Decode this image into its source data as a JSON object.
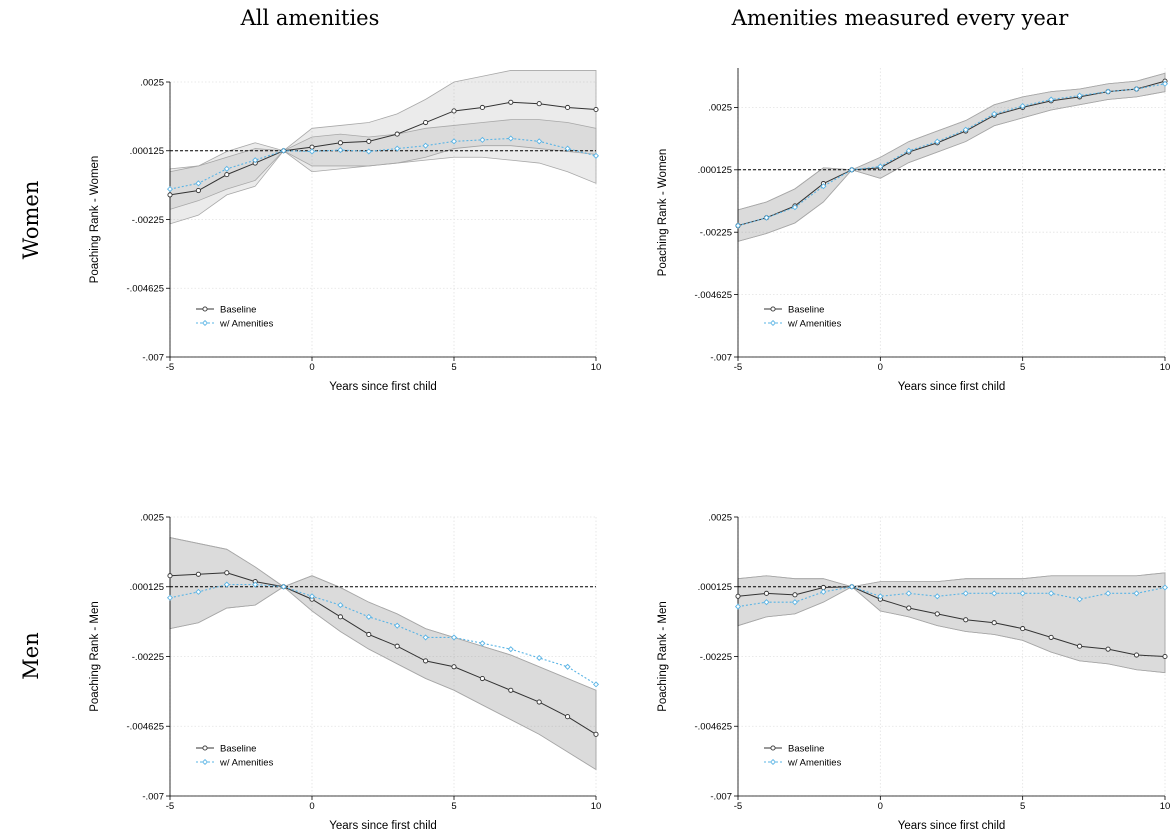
{
  "figure": {
    "column_titles": [
      "All amenities",
      "Amenities measured every year"
    ],
    "row_titles": [
      "Women",
      "Men"
    ]
  },
  "chart_data": [
    {
      "type": "line",
      "column": "All amenities",
      "row": "Women",
      "xlabel": "Years since first child",
      "ylabel": "Poaching Rank - Women",
      "xlim": [
        -5,
        10
      ],
      "ylim": [
        -0.007,
        0.0025
      ],
      "xticks": [
        "-5",
        "0",
        "5",
        "10"
      ],
      "yticks": [
        ".0025",
        ".000125",
        "-.00225",
        "-.004625",
        "-.007"
      ],
      "ytick_values": [
        0.0025,
        0.000125,
        -0.00225,
        -0.004625,
        -0.007
      ],
      "reference_line": 0.000125,
      "grid": true,
      "legend_position": "bottom-left",
      "x": [
        -5,
        -4,
        -3,
        -2,
        -1,
        0,
        1,
        2,
        3,
        4,
        5,
        6,
        7,
        8,
        9,
        10
      ],
      "series": [
        {
          "name": "Baseline",
          "color": "#333333",
          "marker": "circle",
          "values": [
            -0.0014,
            -0.00125,
            -0.0007,
            -0.0003,
            0.000125,
            0.00025,
            0.0004,
            0.00045,
            0.0007,
            0.0011,
            0.0015,
            0.00162,
            0.0018,
            0.00175,
            0.00162,
            0.00155
          ],
          "ci_low": [
            -0.0024,
            -0.0021,
            -0.0014,
            -0.0011,
            0.000125,
            -0.0006,
            -0.0005,
            -0.0004,
            -0.0003,
            -0.0001,
            0.0002,
            0.0003,
            0.0003,
            0.0002,
            0.0001,
            0.0
          ],
          "ci_high": [
            -0.0005,
            -0.0004,
            -0.0001,
            0.0002,
            0.000125,
            0.0009,
            0.001,
            0.0011,
            0.0014,
            0.0019,
            0.0025,
            0.0027,
            0.0029,
            0.0029,
            0.0029,
            0.0029
          ]
        },
        {
          "name": "w/ Amenities",
          "color": "#5ab4e5",
          "marker": "diamond",
          "values": [
            -0.0012,
            -0.001,
            -0.0005,
            -0.0002,
            0.000125,
            0.0001,
            0.00015,
            0.0001,
            0.0002,
            0.0003,
            0.00045,
            0.0005,
            0.00055,
            0.00045,
            0.0002,
            -5e-05
          ],
          "ci_low": [
            -0.0019,
            -0.0016,
            -0.0012,
            -0.0009,
            0.000125,
            -0.0004,
            -0.0004,
            -0.0004,
            -0.0003,
            -0.0002,
            -0.0001,
            -0.0001,
            -0.0002,
            -0.0003,
            -0.0006,
            -0.001
          ],
          "ci_high": [
            -0.0006,
            -0.0004,
            0.0001,
            0.0004,
            0.000125,
            0.0006,
            0.0007,
            0.0006,
            0.0007,
            0.0009,
            0.001,
            0.0011,
            0.0012,
            0.0012,
            0.0011,
            0.0009
          ]
        }
      ]
    },
    {
      "type": "line",
      "column": "Amenities measured every year",
      "row": "Women",
      "xlabel": "Years since first child",
      "ylabel": "Poaching Rank - Women",
      "xlim": [
        -5,
        10
      ],
      "ylim": [
        -0.007,
        0.004
      ],
      "xticks": [
        "-5",
        "0",
        "5",
        "10"
      ],
      "yticks": [
        ".0025",
        ".000125",
        "-.00225",
        "-.004625",
        "-.007"
      ],
      "ytick_values": [
        0.0025,
        0.000125,
        -0.00225,
        -0.004625,
        -0.007
      ],
      "reference_line": 0.000125,
      "grid": true,
      "legend_position": "bottom-left",
      "x": [
        -5,
        -4,
        -3,
        -2,
        -1,
        0,
        1,
        2,
        3,
        4,
        5,
        6,
        7,
        8,
        9,
        10
      ],
      "series": [
        {
          "name": "Baseline",
          "color": "#333333",
          "marker": "circle",
          "values": [
            -0.002,
            -0.0017,
            -0.00125,
            -0.0004,
            0.000125,
            0.0002,
            0.0008,
            0.00115,
            0.0016,
            0.0022,
            0.0025,
            0.00275,
            0.0029,
            0.0031,
            0.0032,
            0.0035
          ],
          "ci_low": [
            -0.0026,
            -0.0023,
            -0.0019,
            -0.0011,
            0.000125,
            -0.0002,
            0.0004,
            0.0008,
            0.0012,
            0.0018,
            0.0021,
            0.0024,
            0.0026,
            0.0028,
            0.0029,
            0.0031
          ],
          "ci_high": [
            -0.0014,
            -0.0011,
            -0.0006,
            0.0002,
            0.000125,
            0.0006,
            0.0012,
            0.0016,
            0.002,
            0.0026,
            0.0029,
            0.0031,
            0.0032,
            0.0034,
            0.0035,
            0.0038
          ]
        },
        {
          "name": "w/ Amenities",
          "color": "#5ab4e5",
          "marker": "diamond",
          "values": [
            -0.002,
            -0.0017,
            -0.0013,
            -0.0005,
            0.000125,
            0.00025,
            0.00085,
            0.0012,
            0.00165,
            0.00225,
            0.00255,
            0.0028,
            0.00295,
            0.0031,
            0.0032,
            0.0034
          ],
          "ci_low": [
            -0.0026,
            -0.0023,
            -0.0019,
            -0.0011,
            0.000125,
            -0.0002,
            0.0004,
            0.0008,
            0.0012,
            0.0018,
            0.0021,
            0.0024,
            0.0026,
            0.0028,
            0.0029,
            0.0031
          ],
          "ci_high": [
            -0.0014,
            -0.0011,
            -0.0006,
            0.0002,
            0.000125,
            0.0006,
            0.0012,
            0.0016,
            0.002,
            0.0026,
            0.0029,
            0.0031,
            0.0032,
            0.0034,
            0.0035,
            0.0038
          ]
        }
      ]
    },
    {
      "type": "line",
      "column": "All amenities",
      "row": "Men",
      "xlabel": "Years since first child",
      "ylabel": "Poaching Rank - Men",
      "xlim": [
        -5,
        10
      ],
      "ylim": [
        -0.007,
        0.0025
      ],
      "xticks": [
        "-5",
        "0",
        "5",
        "10"
      ],
      "yticks": [
        ".0025",
        ".000125",
        "-.00225",
        "-.004625",
        "-.007"
      ],
      "ytick_values": [
        0.0025,
        0.000125,
        -0.00225,
        -0.004625,
        -0.007
      ],
      "reference_line": 0.000125,
      "grid": true,
      "legend_position": "bottom-left",
      "x": [
        -5,
        -4,
        -3,
        -2,
        -1,
        0,
        1,
        2,
        3,
        4,
        5,
        6,
        7,
        8,
        9,
        10
      ],
      "series": [
        {
          "name": "Baseline",
          "color": "#333333",
          "marker": "circle",
          "values": [
            0.0005,
            0.00055,
            0.0006,
            0.0003,
            0.000125,
            -0.0003,
            -0.0009,
            -0.0015,
            -0.0019,
            -0.0024,
            -0.0026,
            -0.003,
            -0.0034,
            -0.0038,
            -0.0043,
            -0.0049
          ],
          "ci_low": [
            -0.0013,
            -0.0011,
            -0.0006,
            -0.0005,
            0.000125,
            -0.0007,
            -0.0014,
            -0.002,
            -0.0025,
            -0.003,
            -0.0034,
            -0.0039,
            -0.0044,
            -0.0049,
            -0.0055,
            -0.0061
          ],
          "ci_high": [
            0.0018,
            0.0016,
            0.0014,
            0.0008,
            0.000125,
            0.0005,
            0.0001,
            -0.0004,
            -0.0008,
            -0.0013,
            -0.0016,
            -0.0019,
            -0.0022,
            -0.0026,
            -0.003,
            -0.0034
          ]
        },
        {
          "name": "w/ Amenities",
          "color": "#5ab4e5",
          "marker": "diamond",
          "values": [
            -0.00025,
            -5e-05,
            0.0002,
            0.0002,
            0.000125,
            -0.0002,
            -0.0005,
            -0.0009,
            -0.0012,
            -0.0016,
            -0.0016,
            -0.0018,
            -0.002,
            -0.0023,
            -0.0026,
            -0.0032
          ],
          "ci_low": [
            -0.0013,
            -0.0011,
            -0.0006,
            -0.0005,
            0.000125,
            -0.0007,
            -0.0014,
            -0.002,
            -0.0025,
            -0.003,
            -0.0034,
            -0.0039,
            -0.0044,
            -0.0049,
            -0.0055,
            -0.0061
          ],
          "ci_high": [
            0.0018,
            0.0016,
            0.0014,
            0.0008,
            0.000125,
            0.0005,
            0.0001,
            -0.0004,
            -0.0008,
            -0.0013,
            -0.0016,
            -0.0019,
            -0.0022,
            -0.0026,
            -0.003,
            -0.0034
          ]
        }
      ]
    },
    {
      "type": "line",
      "column": "Amenities measured every year",
      "row": "Men",
      "xlabel": "Years since first child",
      "ylabel": "Poaching Rank - Men",
      "xlim": [
        -5,
        10
      ],
      "ylim": [
        -0.007,
        0.0025
      ],
      "xticks": [
        "-5",
        "0",
        "5",
        "10"
      ],
      "yticks": [
        ".0025",
        ".000125",
        "-.00225",
        "-.004625",
        "-.007"
      ],
      "ytick_values": [
        0.0025,
        0.000125,
        -0.00225,
        -0.004625,
        -0.007
      ],
      "reference_line": 0.000125,
      "grid": true,
      "legend_position": "bottom-left",
      "x": [
        -5,
        -4,
        -3,
        -2,
        -1,
        0,
        1,
        2,
        3,
        4,
        5,
        6,
        7,
        8,
        9,
        10
      ],
      "series": [
        {
          "name": "Baseline",
          "color": "#333333",
          "marker": "circle",
          "values": [
            -0.0002,
            -0.0001,
            -0.00015,
            0.0001,
            0.000125,
            -0.0003,
            -0.0006,
            -0.0008,
            -0.001,
            -0.0011,
            -0.0013,
            -0.0016,
            -0.0019,
            -0.002,
            -0.0022,
            -0.00225
          ],
          "ci_low": [
            -0.0012,
            -0.0009,
            -0.0008,
            -0.0004,
            0.000125,
            -0.0007,
            -0.0009,
            -0.0012,
            -0.0014,
            -0.0015,
            -0.0017,
            -0.0021,
            -0.0024,
            -0.0025,
            -0.0027,
            -0.0028
          ],
          "ci_high": [
            0.0004,
            0.0005,
            0.0004,
            0.0004,
            0.000125,
            0.0003,
            0.0003,
            0.0003,
            0.0004,
            0.0004,
            0.0004,
            0.0005,
            0.0005,
            0.0005,
            0.0005,
            0.0006
          ]
        },
        {
          "name": "w/ Amenities",
          "color": "#5ab4e5",
          "marker": "diamond",
          "values": [
            -0.00055,
            -0.0004,
            -0.0004,
            -5e-05,
            0.000125,
            -0.0002,
            -0.0001,
            -0.0002,
            -0.0001,
            -0.0001,
            -0.0001,
            -0.0001,
            -0.0003,
            -0.0001,
            -0.0001,
            0.0001
          ],
          "ci_low": [
            -0.0012,
            -0.0009,
            -0.0008,
            -0.0004,
            0.000125,
            -0.0007,
            -0.0009,
            -0.0012,
            -0.0014,
            -0.0015,
            -0.0017,
            -0.0021,
            -0.0024,
            -0.0025,
            -0.0027,
            -0.0028
          ],
          "ci_high": [
            0.0004,
            0.0005,
            0.0004,
            0.0004,
            0.000125,
            0.0003,
            0.0003,
            0.0003,
            0.0004,
            0.0004,
            0.0004,
            0.0005,
            0.0005,
            0.0005,
            0.0005,
            0.0006
          ]
        }
      ]
    }
  ]
}
